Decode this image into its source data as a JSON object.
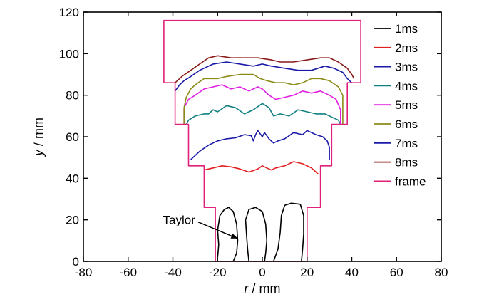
{
  "chart_data": {
    "type": "line",
    "xlabel_var": "r",
    "xlabel_unit": " / mm",
    "ylabel_var": "y",
    "ylabel_unit": " / mm",
    "xlim": [
      -80,
      80
    ],
    "ylim": [
      0,
      120
    ],
    "xticks": [
      -80,
      -60,
      -40,
      -20,
      0,
      20,
      40,
      60,
      80
    ],
    "yticks": [
      0,
      20,
      40,
      60,
      80,
      100,
      120
    ],
    "grid": false,
    "legend_position": "right",
    "annotation": {
      "text": "Taylor",
      "x": -30,
      "y": 20,
      "arrow_to": [
        -11,
        11
      ]
    },
    "series": [
      {
        "name": "1ms",
        "color": "#000000",
        "segments": [
          [
            [
              -20,
              2
            ],
            [
              -19.5,
              8
            ],
            [
              -20,
              15
            ],
            [
              -19,
              22
            ],
            [
              -17,
              25
            ],
            [
              -15,
              26
            ],
            [
              -13,
              24
            ],
            [
              -11.5,
              18
            ],
            [
              -11,
              10
            ],
            [
              -11.5,
              4
            ],
            [
              -13,
              0
            ]
          ],
          [
            [
              -6,
              0
            ],
            [
              -6.5,
              5
            ],
            [
              -7,
              12
            ],
            [
              -7.5,
              20
            ],
            [
              -6,
              25
            ],
            [
              -3,
              26
            ],
            [
              0,
              24
            ],
            [
              1.5,
              18
            ],
            [
              2,
              10
            ],
            [
              1.5,
              4
            ],
            [
              1,
              0
            ]
          ],
          [
            [
              5,
              0
            ],
            [
              7,
              6
            ],
            [
              8,
              14
            ],
            [
              8.5,
              22
            ],
            [
              10,
              27
            ],
            [
              13,
              28
            ],
            [
              17,
              27.5
            ],
            [
              18.5,
              22
            ],
            [
              18.5,
              13
            ],
            [
              18,
              6
            ],
            [
              17.5,
              0
            ]
          ]
        ]
      },
      {
        "name": "2ms",
        "color": "#e02020",
        "segments": [
          [
            [
              -26,
              44
            ],
            [
              -22,
              45
            ],
            [
              -18,
              46
            ],
            [
              -14,
              45.5
            ],
            [
              -10,
              44.5
            ],
            [
              -6,
              43
            ],
            [
              -2,
              44.5
            ],
            [
              0,
              46
            ],
            [
              2,
              45
            ],
            [
              4,
              44
            ],
            [
              6,
              45
            ],
            [
              10,
              46
            ],
            [
              14,
              48
            ],
            [
              18,
              47
            ],
            [
              22,
              45
            ],
            [
              24,
              43
            ],
            [
              25,
              42
            ]
          ]
        ]
      },
      {
        "name": "3ms",
        "color": "#1a1aa8",
        "segments": [
          [
            [
              -32,
              49
            ],
            [
              -28,
              53
            ],
            [
              -24,
              56
            ],
            [
              -20,
              58
            ],
            [
              -16,
              59
            ],
            [
              -12,
              59.5
            ],
            [
              -8,
              61
            ],
            [
              -5,
              60.5
            ],
            [
              -4,
              58
            ],
            [
              -3,
              61
            ],
            [
              -2,
              63
            ],
            [
              0,
              60
            ],
            [
              1,
              62
            ],
            [
              3,
              59
            ],
            [
              5,
              57
            ],
            [
              7,
              58
            ],
            [
              10,
              59
            ],
            [
              14,
              62
            ],
            [
              18,
              61
            ],
            [
              20,
              63
            ],
            [
              24,
              61
            ],
            [
              27,
              60
            ],
            [
              29,
              58
            ],
            [
              30,
              55
            ],
            [
              30,
              49
            ]
          ]
        ]
      },
      {
        "name": "4ms",
        "color": "#138080",
        "segments": [
          [
            [
              -34,
              66
            ],
            [
              -33,
              68
            ],
            [
              -30,
              70
            ],
            [
              -26,
              71
            ],
            [
              -24,
              71
            ],
            [
              -22,
              73
            ],
            [
              -20,
              72
            ],
            [
              -16,
              75
            ],
            [
              -12,
              74
            ],
            [
              -8,
              71
            ],
            [
              -4,
              73
            ],
            [
              0,
              76
            ],
            [
              3,
              74
            ],
            [
              5,
              70
            ],
            [
              8,
              71
            ],
            [
              12,
              70
            ],
            [
              16,
              73
            ],
            [
              20,
              72
            ],
            [
              24,
              71
            ],
            [
              28,
              71
            ],
            [
              32,
              69
            ],
            [
              34,
              68
            ],
            [
              35,
              66
            ]
          ]
        ]
      },
      {
        "name": "5ms",
        "color": "#e020e0",
        "segments": [
          [
            [
              -35,
              66
            ],
            [
              -35,
              74
            ],
            [
              -33,
              78
            ],
            [
              -30,
              80
            ],
            [
              -26,
              83
            ],
            [
              -22,
              84
            ],
            [
              -18,
              85
            ],
            [
              -14,
              83
            ],
            [
              -10,
              84
            ],
            [
              -6,
              82
            ],
            [
              -2,
              84
            ],
            [
              0,
              83
            ],
            [
              3,
              80
            ],
            [
              6,
              78
            ],
            [
              10,
              79
            ],
            [
              14,
              80
            ],
            [
              18,
              82
            ],
            [
              22,
              81
            ],
            [
              26,
              82
            ],
            [
              30,
              80
            ],
            [
              33,
              78
            ],
            [
              35,
              73
            ],
            [
              35,
              66
            ]
          ]
        ]
      },
      {
        "name": "6ms",
        "color": "#8b8b1a",
        "segments": [
          [
            [
              -35,
              66
            ],
            [
              -35,
              74
            ],
            [
              -34,
              79
            ],
            [
              -32,
              83
            ],
            [
              -30,
              85
            ],
            [
              -26,
              88
            ],
            [
              -20,
              88
            ],
            [
              -16,
              89
            ],
            [
              -10,
              90
            ],
            [
              -4,
              90
            ],
            [
              -1,
              88
            ],
            [
              2,
              87
            ],
            [
              6,
              86
            ],
            [
              10,
              86
            ],
            [
              14,
              85
            ],
            [
              18,
              86
            ],
            [
              22,
              88
            ],
            [
              26,
              88
            ],
            [
              30,
              87
            ],
            [
              34,
              84
            ],
            [
              36,
              80
            ],
            [
              36,
              73
            ],
            [
              36,
              66
            ]
          ]
        ]
      },
      {
        "name": "7ms",
        "color": "#1a1aa8",
        "segments": [
          [
            [
              -39,
              82
            ],
            [
              -37,
              85
            ],
            [
              -35,
              87
            ],
            [
              -32,
              89
            ],
            [
              -28,
              92
            ],
            [
              -22,
              95
            ],
            [
              -16,
              96
            ],
            [
              -10,
              95
            ],
            [
              -4,
              94
            ],
            [
              0,
              95
            ],
            [
              4,
              94
            ],
            [
              10,
              93
            ],
            [
              16,
              92
            ],
            [
              22,
              92
            ],
            [
              28,
              94
            ],
            [
              32,
              93
            ],
            [
              36,
              91
            ],
            [
              38,
              88
            ],
            [
              40,
              86
            ]
          ]
        ]
      },
      {
        "name": "8ms",
        "color": "#8b1a1a",
        "segments": [
          [
            [
              -39,
              86
            ],
            [
              -36,
              89
            ],
            [
              -32,
              92
            ],
            [
              -28,
              95
            ],
            [
              -24,
              98
            ],
            [
              -20,
              99
            ],
            [
              -14,
              98
            ],
            [
              -8,
              98
            ],
            [
              -2,
              98
            ],
            [
              4,
              97
            ],
            [
              8,
              96
            ],
            [
              14,
              96
            ],
            [
              20,
              97
            ],
            [
              26,
              98
            ],
            [
              30,
              98
            ],
            [
              34,
              96
            ],
            [
              38,
              93
            ],
            [
              40,
              90
            ],
            [
              41,
              88
            ]
          ]
        ]
      },
      {
        "name": "frame",
        "color": "#e0207a",
        "segments": [
          [
            [
              -21,
              0
            ],
            [
              -21,
              26
            ],
            [
              -26,
              26
            ],
            [
              -26,
              46
            ],
            [
              -33,
              46
            ],
            [
              -33,
              66
            ],
            [
              -39,
              66
            ],
            [
              -39,
              86
            ],
            [
              -44,
              86
            ],
            [
              -44,
              116
            ],
            [
              44,
              116
            ],
            [
              44,
              86
            ],
            [
              38,
              86
            ],
            [
              38,
              66
            ],
            [
              31,
              66
            ],
            [
              31,
              46
            ],
            [
              26,
              46
            ],
            [
              26,
              26
            ],
            [
              20,
              26
            ],
            [
              20,
              0
            ],
            [
              -21,
              0
            ]
          ]
        ]
      }
    ]
  }
}
